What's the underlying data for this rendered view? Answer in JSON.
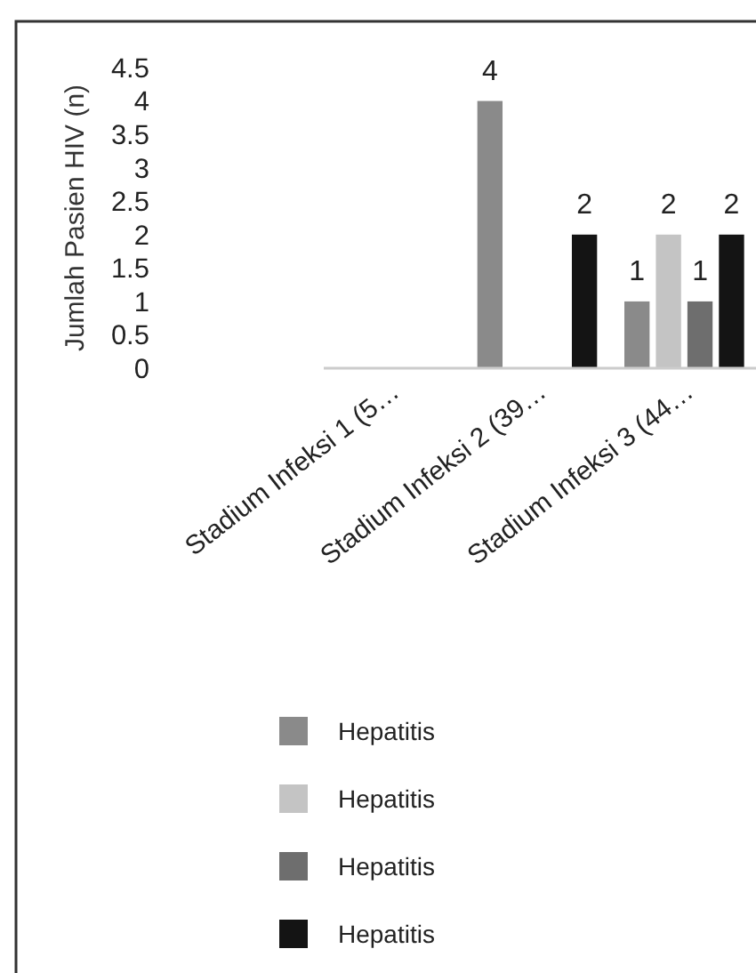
{
  "chart_data": {
    "type": "bar",
    "ylabel": "Jumlah Pasien HIV (n)",
    "categories": [
      "Stadium Infeksi 1 (5…",
      "Stadium Infeksi 2 (39…",
      "Stadium Infeksi 3 (44…"
    ],
    "series": [
      {
        "name": "Hepatitis",
        "color": "#8a8a8a",
        "values": [
          0,
          4,
          1
        ],
        "value_labels": [
          null,
          "4",
          "1"
        ]
      },
      {
        "name": "Hepatitis",
        "color": "#c4c4c4",
        "values": [
          0,
          0,
          2
        ],
        "value_labels": [
          null,
          null,
          "2"
        ]
      },
      {
        "name": "Hepatitis",
        "color": "#6e6e6e",
        "values": [
          0,
          0,
          1
        ],
        "value_labels": [
          null,
          null,
          "1"
        ]
      },
      {
        "name": "Hepatitis",
        "color": "#141414",
        "values": [
          0,
          2,
          2
        ],
        "value_labels": [
          null,
          "2",
          "2"
        ]
      }
    ],
    "ylim": [
      0,
      4.5
    ],
    "yticks": [
      0,
      0.5,
      1,
      1.5,
      2,
      2.5,
      3,
      3.5,
      4,
      4.5
    ],
    "grid": false,
    "legend": "bottom"
  }
}
